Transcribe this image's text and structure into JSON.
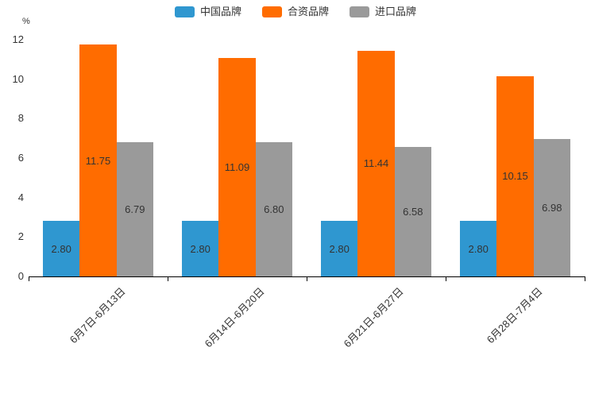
{
  "chart_data": {
    "type": "bar",
    "title": "",
    "unit_label": "%",
    "categories": [
      "6月7日-6月13日",
      "6月14日-6月20日",
      "6月21日-6月27日",
      "6月28日-7月4日"
    ],
    "series": [
      {
        "id": "china-brands",
        "name": "中国品牌",
        "color": "#2F97D0",
        "values": [
          2.8,
          2.8,
          2.8,
          2.8
        ],
        "value_labels": [
          "2.80",
          "2.80",
          "2.80",
          "2.80"
        ]
      },
      {
        "id": "joint-venture-brands",
        "name": "合资品牌",
        "color": "#FF6C00",
        "values": [
          11.75,
          11.09,
          11.44,
          10.15
        ],
        "value_labels": [
          "11.75",
          "11.09",
          "11.44",
          "10.15"
        ]
      },
      {
        "id": "import-brands",
        "name": "进口品牌",
        "color": "#9A9A9A",
        "values": [
          6.79,
          6.8,
          6.58,
          6.98
        ],
        "value_labels": [
          "6.79",
          "6.80",
          "6.58",
          "6.98"
        ]
      }
    ],
    "y_axis": {
      "min": 0,
      "max": 12,
      "tick_step": 2,
      "tick_labels": [
        "0",
        "2",
        "4",
        "6",
        "8",
        "10",
        "12"
      ]
    },
    "grid": false,
    "legend_position": "top-center",
    "value_labels_shown": true,
    "axis_color": "#000000",
    "text_color": "#333333"
  }
}
